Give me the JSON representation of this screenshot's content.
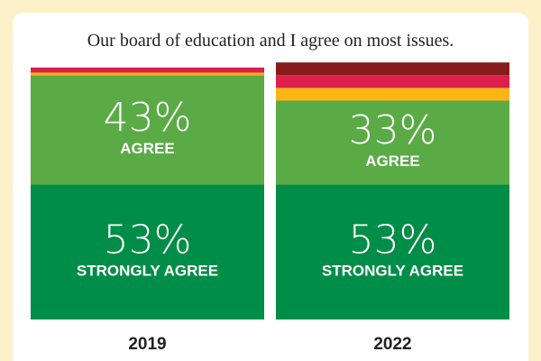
{
  "chart_data": {
    "type": "bar",
    "stacked": "100%",
    "title": "Our board of education and I agree on most issues.",
    "categories": [
      "2019",
      "2022"
    ],
    "series": [
      {
        "name": "STRONGLY AGREE",
        "color": "#008d47",
        "values": [
          53,
          53
        ],
        "labels": [
          "53%",
          "53%"
        ]
      },
      {
        "name": "AGREE",
        "color": "#5aab46",
        "values": [
          43,
          33
        ],
        "labels": [
          "43%",
          "33%"
        ]
      },
      {
        "color": "#fdb515",
        "values": [
          1,
          5
        ]
      },
      {
        "color": "#dc1f4d",
        "values": [
          2,
          5
        ]
      },
      {
        "color": "#861c1c",
        "values": [
          0,
          5
        ]
      }
    ],
    "ylim": [
      0,
      100
    ],
    "grid": false,
    "legend": "none"
  }
}
